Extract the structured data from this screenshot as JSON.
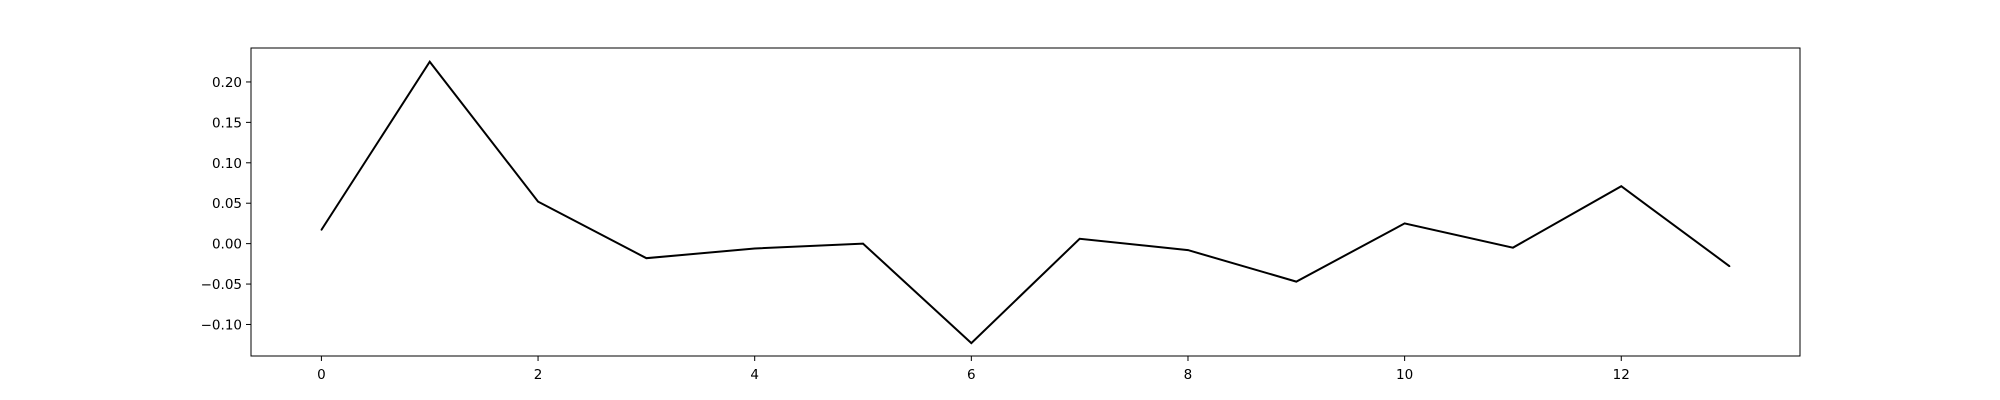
{
  "chart_data": {
    "type": "line",
    "x": [
      0,
      1,
      2,
      3,
      4,
      5,
      6,
      7,
      8,
      9,
      10,
      11,
      12,
      13
    ],
    "series": [
      {
        "values": [
          0.017,
          0.225,
          0.052,
          -0.018,
          -0.006,
          0.0,
          -0.123,
          0.006,
          -0.008,
          -0.047,
          0.025,
          -0.005,
          0.071,
          -0.028
        ],
        "color": "#000000"
      }
    ],
    "xlim": [
      -0.65,
      13.65
    ],
    "ylim": [
      -0.139,
      0.242
    ],
    "xticks": [
      0,
      2,
      4,
      6,
      8,
      10,
      12
    ],
    "xtick_labels": [
      "0",
      "2",
      "4",
      "6",
      "8",
      "10",
      "12"
    ],
    "yticks": [
      -0.1,
      -0.05,
      0.0,
      0.05,
      0.1,
      0.15,
      0.2
    ],
    "ytick_labels": [
      "−0.10",
      "−0.05",
      "0.00",
      "0.05",
      "0.10",
      "0.15",
      "0.20"
    ],
    "grid": false,
    "legend": "none"
  }
}
